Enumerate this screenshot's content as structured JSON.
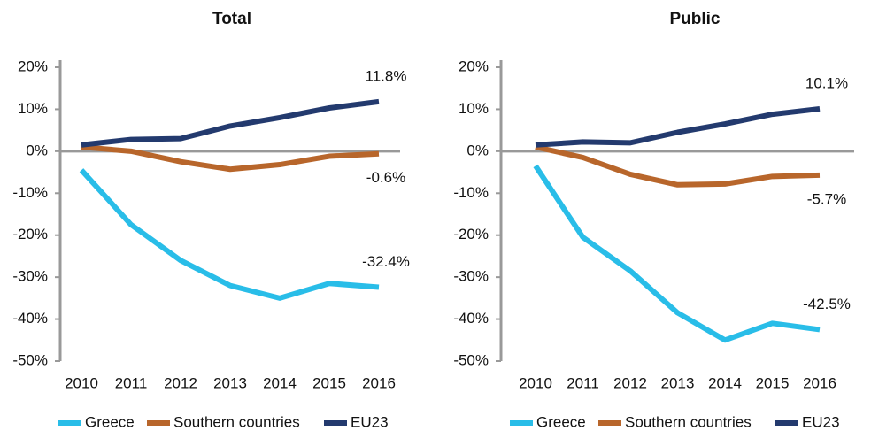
{
  "chart_data": [
    {
      "type": "line",
      "title": "Total",
      "categories": [
        "2010",
        "2011",
        "2012",
        "2013",
        "2014",
        "2015",
        "2016"
      ],
      "ylim": [
        -50,
        20
      ],
      "yticks": [
        {
          "value": -50,
          "label": "-50%"
        },
        {
          "value": -40,
          "label": "-40%"
        },
        {
          "value": -30,
          "label": "-30%"
        },
        {
          "value": -20,
          "label": "-20%"
        },
        {
          "value": -10,
          "label": "-10%"
        },
        {
          "value": 0,
          "label": "0%"
        },
        {
          "value": 10,
          "label": "10%"
        },
        {
          "value": 20,
          "label": "20%"
        }
      ],
      "legend": "bottom",
      "series": [
        {
          "name": "Greece",
          "color": "#29bde8",
          "values": [
            -4.5,
            -17.5,
            -26,
            -32,
            -35,
            -31.5,
            -32.4
          ],
          "value_labels": [
            null,
            null,
            null,
            null,
            null,
            null,
            "-32.4%"
          ]
        },
        {
          "name": "Southern countries",
          "color": "#b8662b",
          "values": [
            1,
            0,
            -2.5,
            -4.3,
            -3.2,
            -1.2,
            -0.6
          ],
          "value_labels": [
            null,
            null,
            null,
            null,
            null,
            null,
            "-0.6%"
          ]
        },
        {
          "name": "EU23",
          "color": "#233a6e",
          "values": [
            1.5,
            2.8,
            3,
            6,
            8,
            10.3,
            11.8
          ],
          "value_labels": [
            null,
            null,
            null,
            null,
            null,
            null,
            "11.8%"
          ]
        }
      ]
    },
    {
      "type": "line",
      "title": "Public",
      "categories": [
        "2010",
        "2011",
        "2012",
        "2013",
        "2014",
        "2015",
        "2016"
      ],
      "ylim": [
        -50,
        20
      ],
      "yticks": [
        {
          "value": -50,
          "label": "-50%"
        },
        {
          "value": -40,
          "label": "-40%"
        },
        {
          "value": -30,
          "label": "-30%"
        },
        {
          "value": -20,
          "label": "-20%"
        },
        {
          "value": -10,
          "label": "-10%"
        },
        {
          "value": 0,
          "label": "0%"
        },
        {
          "value": 10,
          "label": "10%"
        },
        {
          "value": 20,
          "label": "20%"
        }
      ],
      "legend": "bottom",
      "series": [
        {
          "name": "Greece",
          "color": "#29bde8",
          "values": [
            -3.5,
            -20.5,
            -28.5,
            -38.5,
            -45,
            -41,
            -42.5
          ],
          "value_labels": [
            null,
            null,
            null,
            null,
            null,
            null,
            "-42.5%"
          ]
        },
        {
          "name": "Southern countries",
          "color": "#b8662b",
          "values": [
            1,
            -1.5,
            -5.5,
            -8,
            -7.8,
            -6,
            -5.7
          ],
          "value_labels": [
            null,
            null,
            null,
            null,
            null,
            null,
            "-5.7%"
          ]
        },
        {
          "name": "EU23",
          "color": "#233a6e",
          "values": [
            1.5,
            2.2,
            2,
            4.5,
            6.5,
            8.8,
            10.1
          ],
          "value_labels": [
            null,
            null,
            null,
            null,
            null,
            null,
            "10.1%"
          ]
        }
      ]
    }
  ]
}
